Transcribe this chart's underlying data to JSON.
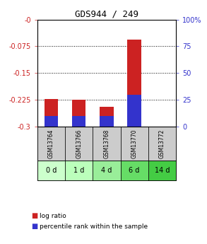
{
  "title": "GDS944 / 249",
  "samples": [
    "GSM13764",
    "GSM13766",
    "GSM13768",
    "GSM13770",
    "GSM13772"
  ],
  "time_labels": [
    "0 d",
    "1 d",
    "4 d",
    "6 d",
    "14 d"
  ],
  "log_ratios": [
    -0.222,
    -0.224,
    -0.244,
    -0.057,
    -0.299
  ],
  "percentile_ranks": [
    10,
    10,
    10,
    30,
    0
  ],
  "ylim_left": [
    -0.3,
    0.0
  ],
  "ylim_right": [
    0,
    100
  ],
  "yticks_left": [
    0.0,
    -0.075,
    -0.15,
    -0.225,
    -0.3
  ],
  "yticks_left_labels": [
    "-0",
    "-0.075",
    "-0.15",
    "-0.225",
    "-0.3"
  ],
  "yticks_right": [
    0,
    25,
    50,
    75,
    100
  ],
  "yticks_right_labels": [
    "0",
    "25",
    "50",
    "75",
    "100%"
  ],
  "bar_color_red": "#cc2222",
  "bar_color_blue": "#3333cc",
  "time_bg_colors": [
    "#ccffcc",
    "#bbffbb",
    "#99ee99",
    "#66dd66",
    "#44cc44"
  ],
  "gsm_bg_color": "#cccccc",
  "legend_red": "log ratio",
  "legend_blue": "percentile rank within the sample",
  "bar_width": 0.5
}
